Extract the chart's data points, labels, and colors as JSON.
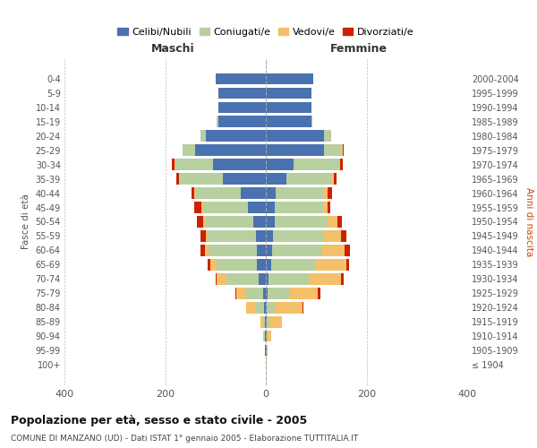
{
  "age_groups": [
    "0-4",
    "5-9",
    "10-14",
    "15-19",
    "20-24",
    "25-29",
    "30-34",
    "35-39",
    "40-44",
    "45-49",
    "50-54",
    "55-59",
    "60-64",
    "65-69",
    "70-74",
    "75-79",
    "80-84",
    "85-89",
    "90-94",
    "95-99",
    "100+"
  ],
  "birth_years": [
    "2000-2004",
    "1995-1999",
    "1990-1994",
    "1985-1989",
    "1980-1984",
    "1975-1979",
    "1970-1974",
    "1965-1969",
    "1960-1964",
    "1955-1959",
    "1950-1954",
    "1945-1949",
    "1940-1944",
    "1935-1939",
    "1930-1934",
    "1925-1929",
    "1920-1924",
    "1915-1919",
    "1910-1914",
    "1905-1909",
    "≤ 1904"
  ],
  "colors": {
    "celibi": "#4a72b0",
    "coniugati": "#b8cfa0",
    "vedovi": "#f4c06a",
    "divorziati": "#cc2200"
  },
  "males": {
    "celibi": [
      100,
      95,
      95,
      95,
      120,
      140,
      105,
      85,
      50,
      35,
      25,
      20,
      18,
      18,
      14,
      6,
      4,
      2,
      1,
      1,
      0
    ],
    "coniugati": [
      0,
      0,
      0,
      2,
      10,
      25,
      75,
      85,
      90,
      90,
      95,
      95,
      95,
      80,
      65,
      35,
      15,
      4,
      2,
      0,
      0
    ],
    "vedovi": [
      0,
      0,
      0,
      0,
      0,
      0,
      2,
      2,
      2,
      3,
      5,
      5,
      8,
      12,
      18,
      18,
      20,
      5,
      2,
      0,
      0
    ],
    "divorziati": [
      0,
      0,
      0,
      0,
      0,
      0,
      5,
      5,
      5,
      15,
      12,
      10,
      8,
      5,
      2,
      2,
      0,
      0,
      0,
      0,
      0
    ]
  },
  "females": {
    "nubili": [
      95,
      90,
      90,
      90,
      115,
      115,
      55,
      40,
      20,
      18,
      18,
      15,
      12,
      10,
      5,
      3,
      2,
      2,
      1,
      1,
      0
    ],
    "coniugate": [
      0,
      0,
      0,
      2,
      15,
      35,
      90,
      90,
      95,
      95,
      105,
      100,
      100,
      90,
      80,
      45,
      15,
      5,
      2,
      0,
      0
    ],
    "vedove": [
      0,
      0,
      0,
      0,
      0,
      2,
      2,
      5,
      8,
      10,
      20,
      35,
      45,
      60,
      65,
      55,
      55,
      25,
      8,
      3,
      1
    ],
    "divorziate": [
      0,
      0,
      0,
      0,
      0,
      2,
      5,
      5,
      8,
      5,
      8,
      10,
      10,
      5,
      5,
      5,
      2,
      0,
      0,
      0,
      0
    ]
  },
  "xlim": 400,
  "title": "Popolazione per età, sesso e stato civile - 2005",
  "subtitle": "COMUNE DI MANZANO (UD) - Dati ISTAT 1° gennaio 2005 - Elaborazione TUTTITALIA.IT",
  "xlabel_left": "Maschi",
  "xlabel_right": "Femmine",
  "ylabel_left": "Fasce di età",
  "ylabel_right": "Anni di nascita",
  "legend_labels": [
    "Celibi/Nubili",
    "Coniugati/e",
    "Vedovi/e",
    "Divorziati/e"
  ],
  "bg_color": "#ffffff",
  "plot_bg": "#ffffff"
}
